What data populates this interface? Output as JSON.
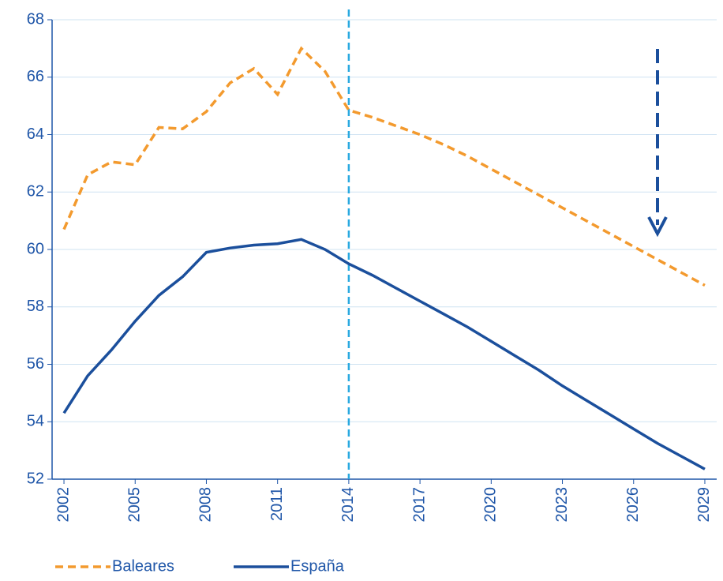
{
  "chart_data": {
    "type": "line",
    "x": [
      2002,
      2003,
      2004,
      2005,
      2006,
      2007,
      2008,
      2009,
      2010,
      2011,
      2012,
      2013,
      2014,
      2015,
      2016,
      2017,
      2018,
      2019,
      2020,
      2021,
      2022,
      2023,
      2024,
      2025,
      2026,
      2027,
      2028,
      2029
    ],
    "series": [
      {
        "name": "Baleares",
        "color": "#f39a2e",
        "dash": true,
        "values": [
          60.7,
          62.6,
          63.05,
          62.95,
          64.25,
          64.2,
          64.8,
          65.8,
          66.3,
          65.4,
          67.0,
          66.2,
          64.85,
          64.6,
          64.3,
          64.0,
          63.65,
          63.25,
          62.8,
          62.35,
          61.9,
          61.45,
          61.0,
          60.55,
          60.1,
          59.65,
          59.2,
          58.75
        ]
      },
      {
        "name": "España",
        "color": "#1b4f9c",
        "dash": false,
        "values": [
          54.3,
          55.6,
          56.5,
          57.5,
          58.4,
          59.05,
          59.9,
          60.05,
          60.15,
          60.2,
          60.35,
          60.0,
          59.5,
          59.1,
          58.65,
          58.2,
          57.75,
          57.3,
          56.8,
          56.3,
          55.8,
          55.25,
          54.75,
          54.25,
          53.75,
          53.25,
          52.8,
          52.35
        ]
      }
    ],
    "xlim": [
      2001.5,
      2029.5
    ],
    "xticks": [
      2002,
      2005,
      2008,
      2011,
      2014,
      2017,
      2020,
      2023,
      2026,
      2029
    ],
    "ylim": [
      52,
      68
    ],
    "yticks": [
      52,
      54,
      56,
      58,
      60,
      62,
      64,
      66,
      68
    ],
    "grid": true,
    "vline": 2014,
    "vline_color": "#29a9e0",
    "legend": "bottom"
  }
}
